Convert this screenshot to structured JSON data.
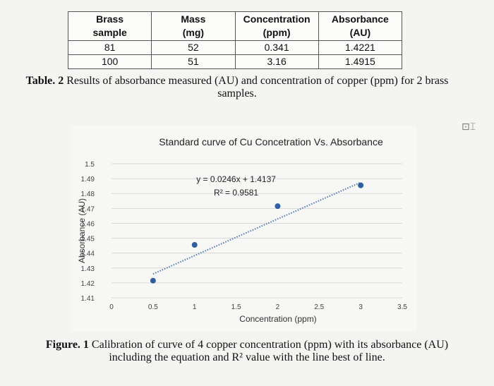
{
  "table": {
    "headers": [
      "Brass\nsample",
      "Mass\n(mg)",
      "Concentration\n(ppm)",
      "Absorbance\n(AU)"
    ],
    "rows": [
      [
        "81",
        "52",
        "0.341",
        "1.4221"
      ],
      [
        "100",
        "51",
        "3.16",
        "1.4915"
      ]
    ]
  },
  "table_caption": {
    "label": "Table. 2",
    "text": " Results of absorbance measured (AU) and concentration of copper (ppm) for 2 brass samples."
  },
  "figure_caption": {
    "label": "Figure. 1",
    "text": " Calibration of curve of 4 copper concentration (ppm) with its absorbance (AU) including the equation and R² value with the line best of line."
  },
  "chart_data": {
    "type": "scatter",
    "title": "Standard curve of Cu Concetration Vs. Absorbance",
    "xlabel": "Concentration (ppm)",
    "ylabel": "Absorbance (AU)",
    "xlim": [
      0,
      3.5
    ],
    "ylim": [
      1.41,
      1.5
    ],
    "x_ticks": [
      "0",
      "0.5",
      "1",
      "1.5",
      "2",
      "2.5",
      "3",
      "3.5"
    ],
    "y_ticks": [
      "1.41",
      "1.42",
      "1.43",
      "1.44",
      "1.45",
      "1.46",
      "1.47",
      "1.48",
      "1.49",
      "1.5"
    ],
    "grid": true,
    "points": [
      {
        "x": 0.5,
        "y": 1.4215
      },
      {
        "x": 1,
        "y": 1.4455
      },
      {
        "x": 2,
        "y": 1.4715
      },
      {
        "x": 3,
        "y": 1.4855
      }
    ],
    "trendline": {
      "type": "linear",
      "slope": 0.0246,
      "intercept": 1.4137,
      "x_range": [
        0.5,
        3
      ],
      "style": "dotted"
    },
    "equation_label": "y = 0.0246x + 1.4137",
    "r2_label": "R² = 0.9581",
    "colors": {
      "point": "#2e5f9e",
      "grid": "#d9d9d9",
      "trend": "#4f78b3"
    }
  }
}
